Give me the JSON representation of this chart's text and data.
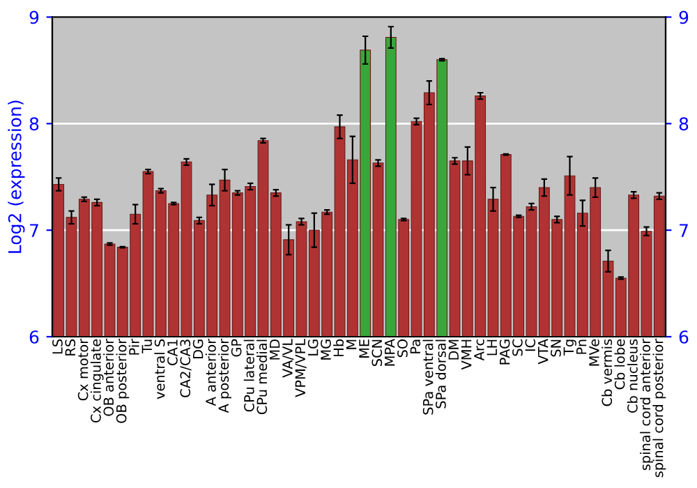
{
  "chart_data": {
    "type": "bar",
    "ylabel": "Log2 (expression)",
    "categories": [
      "LS",
      "RS",
      "Cx motor",
      "Cx cingulate",
      "OB anterior",
      "OB posterior",
      "Pir",
      "Tu",
      "ventral S",
      "CA1",
      "CA2/CA3",
      "DG",
      "A anterior",
      "A posterior",
      "GP",
      "CPu lateral",
      "CPu medial",
      "MD",
      "VA/VL",
      "VPM/VPL",
      "LG",
      "MG",
      "Hb",
      "M",
      "ME",
      "SCN",
      "MPA",
      "SO",
      "Pa",
      "SPa ventral",
      "SPa dorsal",
      "DM",
      "VMH",
      "Arc",
      "LH",
      "PAG",
      "SC",
      "IC",
      "VTA",
      "SN",
      "Tg",
      "Pn",
      "MVe",
      "Cb vermis",
      "Cb lobe",
      "Cb nucleus",
      "spinal cord anterior",
      "spinal cord posterior"
    ],
    "values": [
      7.43,
      7.12,
      7.29,
      7.26,
      6.87,
      6.84,
      7.15,
      7.55,
      7.37,
      7.25,
      7.64,
      7.09,
      7.33,
      7.47,
      7.35,
      7.41,
      7.84,
      7.35,
      6.91,
      7.08,
      7.0,
      7.17,
      7.97,
      7.66,
      8.69,
      7.63,
      8.81,
      7.1,
      8.02,
      8.29,
      8.6,
      7.65,
      7.65,
      8.26,
      7.29,
      7.71,
      7.13,
      7.22,
      7.4,
      7.1,
      7.51,
      7.16,
      7.4,
      6.71,
      6.55,
      7.33,
      6.99,
      7.32
    ],
    "errors": [
      0.06,
      0.06,
      0.02,
      0.03,
      0.01,
      0.005,
      0.09,
      0.02,
      0.02,
      0.01,
      0.03,
      0.03,
      0.1,
      0.1,
      0.02,
      0.03,
      0.02,
      0.03,
      0.14,
      0.03,
      0.16,
      0.02,
      0.11,
      0.22,
      0.13,
      0.03,
      0.1,
      0.01,
      0.03,
      0.11,
      0.01,
      0.03,
      0.13,
      0.03,
      0.11,
      0.005,
      0.01,
      0.03,
      0.08,
      0.03,
      0.18,
      0.12,
      0.09,
      0.1,
      0.01,
      0.03,
      0.04,
      0.03
    ],
    "colors": [
      "#b03333",
      "#b03333",
      "#b03333",
      "#b03333",
      "#b03333",
      "#b03333",
      "#b03333",
      "#b03333",
      "#b03333",
      "#b03333",
      "#b03333",
      "#b03333",
      "#b03333",
      "#b03333",
      "#b03333",
      "#b03333",
      "#b03333",
      "#b03333",
      "#b03333",
      "#b03333",
      "#b03333",
      "#b03333",
      "#b03333",
      "#b03333",
      "#3aa63a",
      "#b03333",
      "#3aa63a",
      "#b03333",
      "#b03333",
      "#b03333",
      "#3aa63a",
      "#b03333",
      "#b03333",
      "#b03333",
      "#b03333",
      "#b03333",
      "#b03333",
      "#b03333",
      "#b03333",
      "#b03333",
      "#b03333",
      "#b03333",
      "#b03333",
      "#b03333",
      "#b03333",
      "#b03333",
      "#b03333",
      "#b03333"
    ],
    "ylim": [
      6,
      9
    ],
    "yticks": [
      6,
      7,
      8,
      9
    ],
    "y2lim": [
      6,
      9
    ],
    "y2ticks": [
      6,
      7,
      8,
      9
    ],
    "grid": "y"
  }
}
